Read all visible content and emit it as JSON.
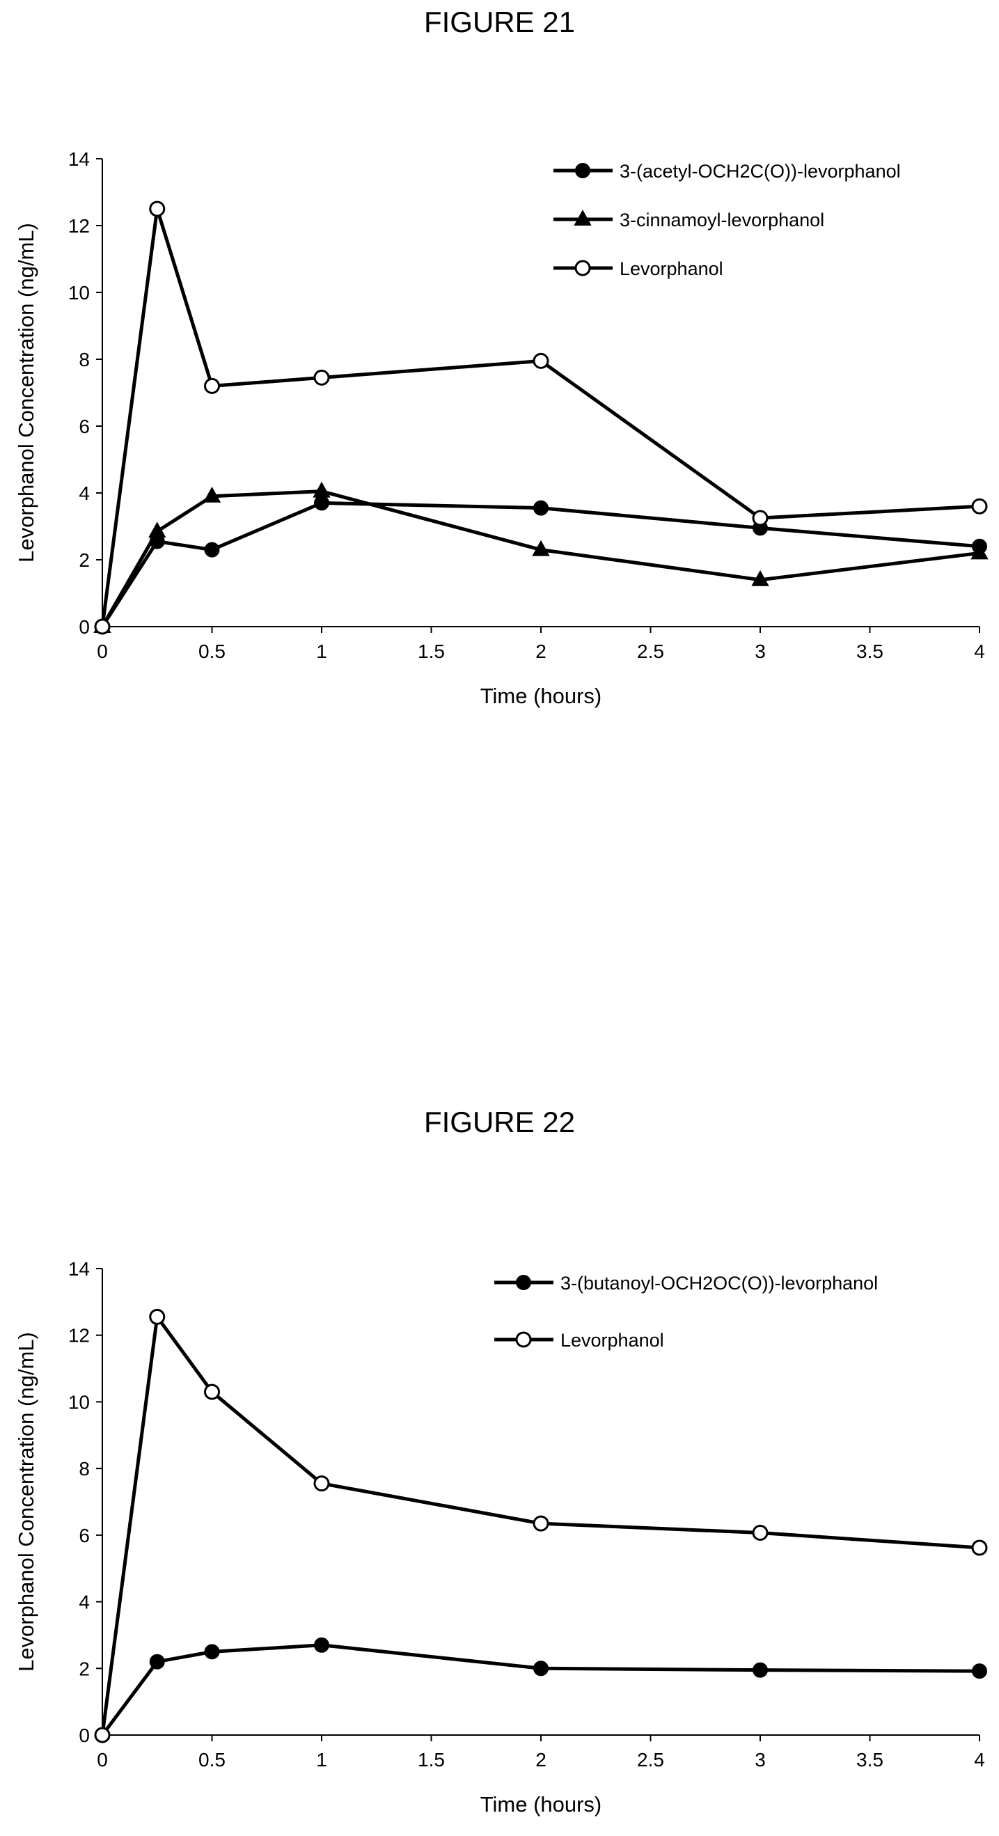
{
  "chart_data": [
    {
      "type": "line",
      "title": "FIGURE 21",
      "xlabel": "Time (hours)",
      "ylabel": "Levorphanol Concentration (ng/mL)",
      "xlim": [
        0,
        4
      ],
      "ylim": [
        0,
        14
      ],
      "xticks": [
        "0",
        "0.5",
        "1",
        "1.5",
        "2",
        "2.5",
        "3",
        "3.5",
        "4"
      ],
      "yticks": [
        "0",
        "2",
        "4",
        "6",
        "8",
        "10",
        "12",
        "14"
      ],
      "grid": false,
      "legend_position": "top-right",
      "series": [
        {
          "name": "3-(acetyl-OCH2C(O))-levorphanol",
          "marker": "filled-circle",
          "x": [
            0,
            0.25,
            0.5,
            1,
            2,
            3,
            4
          ],
          "y": [
            0,
            2.55,
            2.3,
            3.7,
            3.55,
            2.95,
            2.4
          ]
        },
        {
          "name": "3-cinnamoyl-levorphanol",
          "marker": "filled-triangle",
          "x": [
            0,
            0.25,
            0.5,
            1,
            2,
            3,
            4
          ],
          "y": [
            0,
            2.85,
            3.9,
            4.05,
            2.3,
            1.4,
            2.2
          ]
        },
        {
          "name": "Levorphanol",
          "marker": "open-circle",
          "x": [
            0,
            0.25,
            0.5,
            1,
            2,
            3,
            4
          ],
          "y": [
            0,
            12.5,
            7.2,
            7.45,
            7.95,
            3.25,
            3.6
          ]
        }
      ]
    },
    {
      "type": "line",
      "title": "FIGURE 22",
      "xlabel": "Time (hours)",
      "ylabel": "Levorphanol Concentration (ng/mL)",
      "xlim": [
        0,
        4
      ],
      "ylim": [
        0,
        14
      ],
      "xticks": [
        "0",
        "0.5",
        "1",
        "1.5",
        "2",
        "2.5",
        "3",
        "3.5",
        "4"
      ],
      "yticks": [
        "0",
        "2",
        "4",
        "6",
        "8",
        "10",
        "12",
        "14"
      ],
      "grid": false,
      "legend_position": "top-right",
      "series": [
        {
          "name": "3-(butanoyl-OCH2OC(O))-levorphanol",
          "marker": "filled-circle",
          "x": [
            0,
            0.25,
            0.5,
            1,
            2,
            3,
            4
          ],
          "y": [
            0,
            2.2,
            2.5,
            2.7,
            2.0,
            1.95,
            1.92
          ]
        },
        {
          "name": "Levorphanol",
          "marker": "open-circle",
          "x": [
            0,
            0.25,
            0.5,
            1,
            2,
            3,
            4
          ],
          "y": [
            0,
            12.55,
            10.3,
            7.55,
            6.35,
            6.07,
            5.62
          ]
        }
      ]
    }
  ]
}
